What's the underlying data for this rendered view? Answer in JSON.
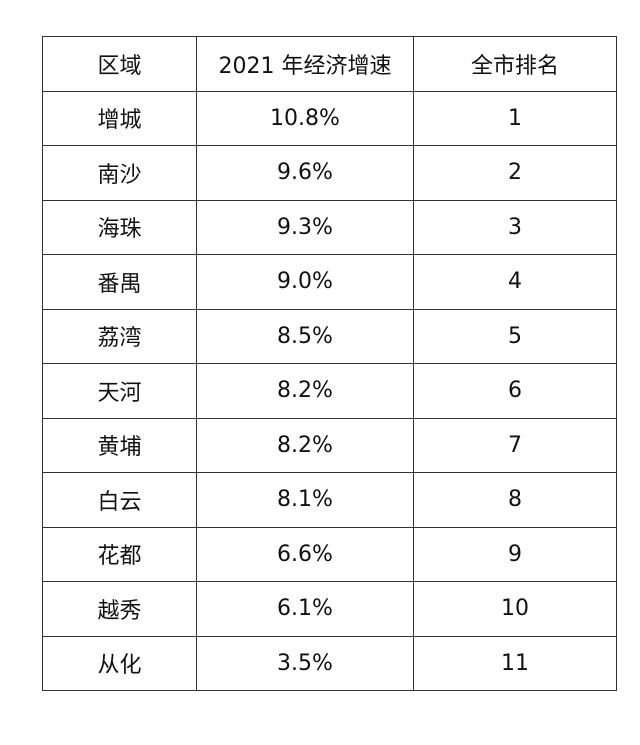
{
  "table": {
    "headers": [
      "区域",
      "2021 年经济增速",
      "全市排名"
    ],
    "rows": [
      {
        "district": "增城",
        "growth": "10.8%",
        "rank": "1"
      },
      {
        "district": "南沙",
        "growth": "9.6%",
        "rank": "2"
      },
      {
        "district": "海珠",
        "growth": "9.3%",
        "rank": "3"
      },
      {
        "district": "番禺",
        "growth": "9.0%",
        "rank": "4"
      },
      {
        "district": "荔湾",
        "growth": "8.5%",
        "rank": "5"
      },
      {
        "district": "天河",
        "growth": "8.2%",
        "rank": "6"
      },
      {
        "district": "黄埔",
        "growth": "8.2%",
        "rank": "7"
      },
      {
        "district": "白云",
        "growth": "8.1%",
        "rank": "8"
      },
      {
        "district": "花都",
        "growth": "6.6%",
        "rank": "9"
      },
      {
        "district": "越秀",
        "growth": "6.1%",
        "rank": "10"
      },
      {
        "district": "从化",
        "growth": "3.5%",
        "rank": "11"
      }
    ]
  },
  "colors": {
    "border": "#333333",
    "text": "#111111",
    "background": "#ffffff"
  }
}
